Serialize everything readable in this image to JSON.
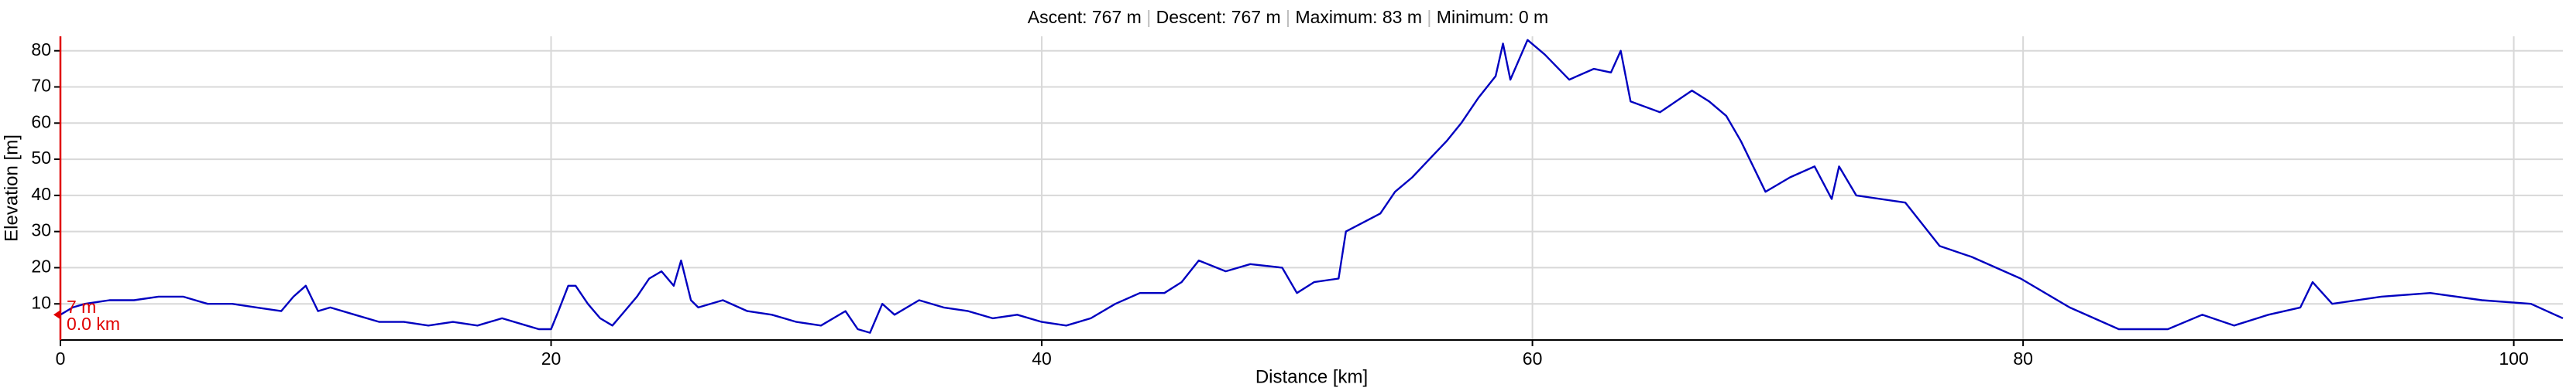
{
  "chart_data": {
    "type": "line",
    "stats": [
      "Ascent: 767 m",
      "Descent: 767 m",
      "Maximum: 83 m",
      "Minimum: 0 m"
    ],
    "x_label": "Distance [km]",
    "y_label": "Elevation [m]",
    "cursor": {
      "elevation": "7 m",
      "distance": "0.0 km"
    },
    "xlim": [
      0,
      102
    ],
    "ylim": [
      0,
      84
    ],
    "xticks": [
      0,
      20,
      40,
      60,
      80,
      100
    ],
    "yticks": [
      10,
      20,
      30,
      40,
      50,
      60,
      70,
      80
    ],
    "grid": true,
    "x": [
      0,
      0.5,
      1,
      2,
      3,
      4,
      5,
      6,
      7,
      8,
      9,
      9.5,
      10,
      10.5,
      11,
      12,
      13,
      14,
      15,
      16,
      17,
      18,
      19,
      19.5,
      20,
      20.3,
      20.7,
      21,
      21.5,
      22,
      22.5,
      23,
      23.5,
      24,
      24.5,
      25,
      25.3,
      25.7,
      26,
      27,
      28,
      29,
      30,
      31,
      32,
      32.5,
      33,
      33.5,
      34,
      35,
      36,
      37,
      38,
      39,
      40,
      41,
      42,
      43,
      44,
      45,
      45.7,
      46.4,
      47.5,
      48.5,
      49.8,
      50.4,
      51.1,
      52.1,
      52.4,
      53.8,
      54.4,
      55.1,
      55.8,
      56.5,
      57.1,
      57.8,
      58.5,
      58.8,
      59.1,
      59.8,
      60.5,
      61.5,
      62.5,
      63.2,
      63.6,
      64,
      65.2,
      66.5,
      67.2,
      67.9,
      68.5,
      69.5,
      70.5,
      71.5,
      72.2,
      72.5,
      73.2,
      75.2,
      76.6,
      77.9,
      79.9,
      81.9,
      83.9,
      85.9,
      87.3,
      88.6,
      90,
      91.3,
      91.8,
      92.6,
      94.6,
      96.6,
      98.7,
      100.7,
      102
    ],
    "series": [
      {
        "name": "Elevation",
        "color": "#0000c0",
        "values": [
          7,
          9,
          10,
          11,
          11,
          12,
          12,
          10,
          10,
          9,
          8,
          12,
          15,
          8,
          9,
          7,
          5,
          5,
          4,
          5,
          4,
          6,
          4,
          3,
          3,
          8,
          15,
          15,
          10,
          6,
          4,
          8,
          12,
          17,
          19,
          15,
          22,
          11,
          9,
          11,
          8,
          7,
          5,
          4,
          8,
          3,
          2,
          10,
          7,
          11,
          9,
          8,
          6,
          7,
          5,
          4,
          6,
          10,
          13,
          13,
          16,
          22,
          19,
          21,
          20,
          13,
          16,
          17,
          30,
          35,
          41,
          45,
          50,
          55,
          60,
          67,
          73,
          82,
          72,
          83,
          79,
          72,
          75,
          74,
          80,
          66,
          63,
          69,
          66,
          62,
          55,
          41,
          45,
          48,
          39,
          48,
          40,
          38,
          26,
          23,
          17,
          9,
          3,
          3,
          7,
          4,
          7,
          9,
          16,
          10,
          12,
          13,
          11,
          10,
          6
        ]
      }
    ]
  }
}
